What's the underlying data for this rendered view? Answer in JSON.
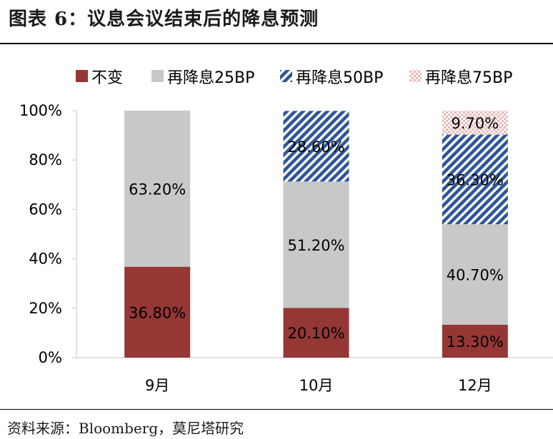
{
  "header": {
    "title": "图表 6：议息会议结束后的降息预测"
  },
  "footer": {
    "source": "资料来源：Bloomberg，莫尼塔研究"
  },
  "colors": {
    "hold": "#953735",
    "cut25": "#c8c8c8",
    "cut50": "#2e5597",
    "cut75": "#e6b8b7"
  },
  "chart_data": {
    "type": "bar",
    "stacked": true,
    "title": "",
    "xlabel": "",
    "ylabel": "",
    "ylim": [
      0,
      100
    ],
    "yticks": [
      "0%",
      "20%",
      "40%",
      "60%",
      "80%",
      "100%"
    ],
    "categories": [
      "9月",
      "10月",
      "12月"
    ],
    "legend_position": "top",
    "series": [
      {
        "name": "不变",
        "values": [
          36.8,
          20.1,
          13.3
        ],
        "labels": [
          "36.80%",
          "20.10%",
          "13.30%"
        ]
      },
      {
        "name": "再降息25BP",
        "values": [
          63.2,
          51.2,
          40.7
        ],
        "labels": [
          "63.20%",
          "51.20%",
          "40.70%"
        ]
      },
      {
        "name": "再降息50BP",
        "values": [
          0,
          28.6,
          36.3
        ],
        "labels": [
          "",
          "28.60%",
          "36.30%"
        ]
      },
      {
        "name": "再降息75BP",
        "values": [
          0,
          0,
          9.7
        ],
        "labels": [
          "",
          "",
          "9.70%"
        ]
      }
    ]
  }
}
